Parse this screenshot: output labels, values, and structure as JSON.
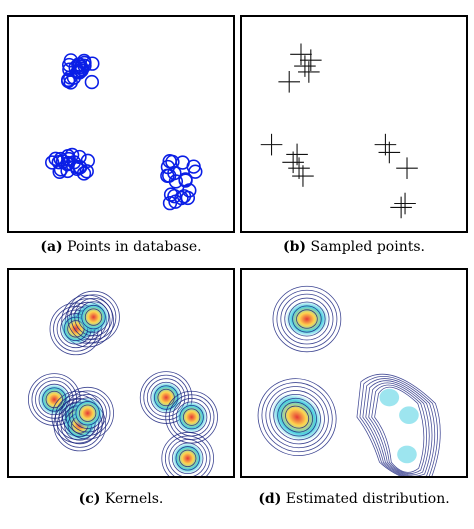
{
  "captions": {
    "a": {
      "tag": "(a)",
      "text": " Points in database."
    },
    "b": {
      "tag": "(b)",
      "text": " Sampled points."
    },
    "c": {
      "tag": "(c)",
      "text": " Kernels."
    },
    "d": {
      "tag": "(d)",
      "text": " Estimated distribution."
    }
  },
  "colors": {
    "database_points": "#0a1ee6",
    "sampled_points": "#111111",
    "contour_outer": "#1a237e",
    "heat_center": "#e53935",
    "heat_mid": "#ffd54f",
    "heat_edge": "#4dd0e1"
  },
  "icons": {
    "database_point": "circle-marker",
    "sampled_point": "plus-marker"
  }
}
